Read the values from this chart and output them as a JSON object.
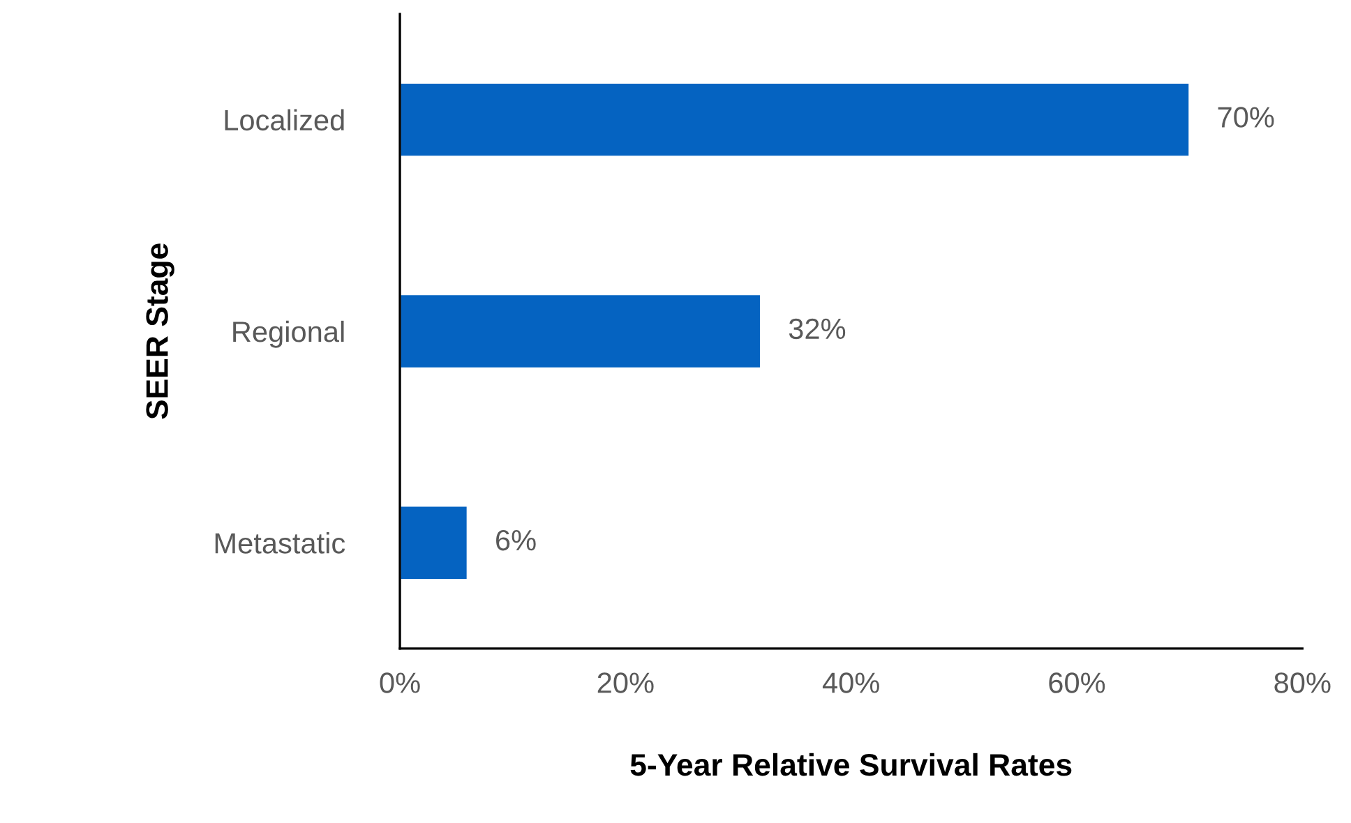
{
  "chart_data": {
    "type": "bar",
    "orientation": "horizontal",
    "xlabel": "5-Year Relative Survival Rates",
    "ylabel": "SEER Stage",
    "categories": [
      "Localized",
      "Regional",
      "Metastatic"
    ],
    "values": [
      70,
      32,
      6
    ],
    "value_labels": [
      "70%",
      "32%",
      "6%"
    ],
    "color": "#0563c1",
    "xlim": [
      0,
      80
    ],
    "xticks": [
      {
        "value": 0,
        "label": "0%"
      },
      {
        "value": 20,
        "label": "20%"
      },
      {
        "value": 40,
        "label": "40%"
      },
      {
        "value": 60,
        "label": "60%"
      },
      {
        "value": 80,
        "label": "80%"
      }
    ],
    "grid": false,
    "legend": false
  }
}
